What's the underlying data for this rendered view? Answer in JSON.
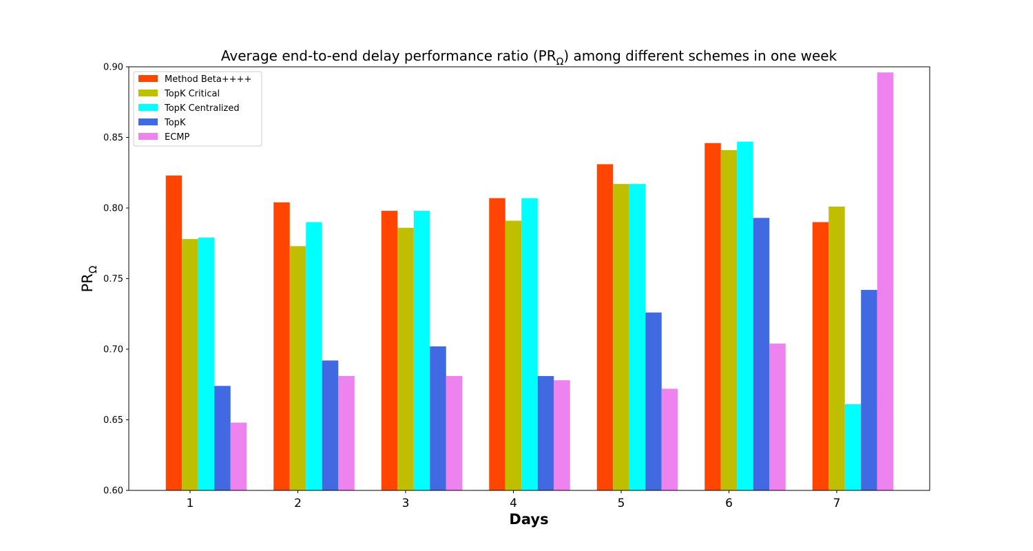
{
  "chart_data": {
    "type": "bar",
    "title": "Average end-to-end delay performance ratio (PR",
    "title_subscript": "Ω",
    "title_suffix": ") among different schemes in one week",
    "xlabel": "Days",
    "ylabel": "PR",
    "ylabel_subscript": "Ω",
    "categories": [
      "1",
      "2",
      "3",
      "4",
      "5",
      "6",
      "7"
    ],
    "ylim": [
      0.6,
      0.9
    ],
    "yticks": [
      "0.60",
      "0.65",
      "0.70",
      "0.75",
      "0.80",
      "0.85",
      "0.90"
    ],
    "grid": false,
    "legend_position": "top-left",
    "series": [
      {
        "name": "Method Beta++++",
        "color": "#ff4500",
        "values": [
          0.823,
          0.804,
          0.798,
          0.807,
          0.831,
          0.846,
          0.79
        ]
      },
      {
        "name": "TopK Critical",
        "color": "#bfbf00",
        "values": [
          0.778,
          0.773,
          0.786,
          0.791,
          0.817,
          0.841,
          0.801
        ]
      },
      {
        "name": "TopK Centralized",
        "color": "#00ffff",
        "values": [
          0.779,
          0.79,
          0.798,
          0.807,
          0.817,
          0.847,
          0.661
        ]
      },
      {
        "name": "TopK",
        "color": "#4169e1",
        "values": [
          0.674,
          0.692,
          0.702,
          0.681,
          0.726,
          0.793,
          0.742
        ]
      },
      {
        "name": "ECMP",
        "color": "#ee82ee",
        "values": [
          0.648,
          0.681,
          0.681,
          0.678,
          0.672,
          0.704,
          0.896
        ]
      }
    ]
  }
}
